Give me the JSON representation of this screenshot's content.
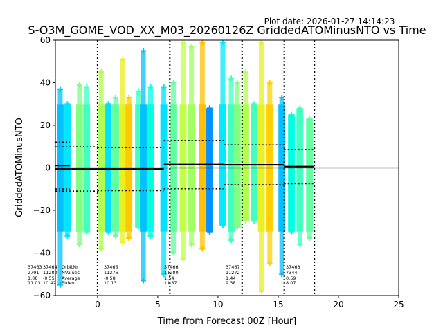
{
  "chart_data": {
    "type": "scatter",
    "plot_date": "Plot date: 2026-01-27 14:14:23",
    "title": "S-O3M_GOME_VOD_XX_M03_20260126Z GriddedATOMinusNTO vs Time",
    "xlabel": "Time from Forecast 00Z [Hour]",
    "ylabel": "GriddedATOMinusNTO",
    "xlim": [
      -3.5,
      25
    ],
    "ylim": [
      -60,
      60
    ],
    "xticks": [
      0,
      5,
      10,
      15,
      20,
      25
    ],
    "yticks": [
      -60,
      -40,
      -20,
      0,
      20,
      40,
      60
    ],
    "forecast_boundaries": [
      0,
      6,
      12,
      15.5,
      18
    ],
    "zero_line": 0,
    "orbit_stats": [
      {
        "orbit": "37463",
        "nvalues": "2791",
        "average": "1.08",
        "stdev": "11.03",
        "x_start": -3.5,
        "x_end": -2.3,
        "mean": 1.08,
        "sd": 11.03
      },
      {
        "orbit": "37464",
        "nvalues": "11280",
        "average": "-0.55",
        "stdev": "10.42",
        "x_start": -3.5,
        "x_end": 0,
        "mean": -0.55,
        "sd": 10.42
      },
      {
        "orbit": "37465",
        "nvalues": "11276",
        "average": "-0.58",
        "stdev": "10.13",
        "x_start": 0,
        "x_end": 5.5,
        "mean": -0.58,
        "sd": 10.13
      },
      {
        "orbit": "37466",
        "nvalues": "11280",
        "average": "1.54",
        "stdev": "11.37",
        "x_start": 5.5,
        "x_end": 10.5,
        "mean": 1.54,
        "sd": 11.37
      },
      {
        "orbit": "37467",
        "nvalues": "11272",
        "average": "1.44",
        "stdev": "9.38",
        "x_start": 10.5,
        "x_end": 15.5,
        "mean": 1.44,
        "sd": 9.38
      },
      {
        "orbit": "37468",
        "nvalues": "7344",
        "average": "0.59",
        "stdev": "8.07",
        "x_start": 15.5,
        "x_end": 18,
        "mean": 0.59,
        "sd": 8.07
      }
    ],
    "stat_labels": [
      "OrbitNr",
      "NValues",
      "Average",
      "Stdev"
    ],
    "strips": [
      {
        "x": -3.1,
        "ymin": -55,
        "ymax": 37,
        "color": "#00bfff"
      },
      {
        "x": -2.5,
        "ymin": -32,
        "ymax": 30,
        "color": "#00e5ff"
      },
      {
        "x": -1.5,
        "ymin": -36,
        "ymax": 39,
        "color": "#7fff7f"
      },
      {
        "x": -0.9,
        "ymin": -30,
        "ymax": 38,
        "color": "#40ffbf"
      },
      {
        "x": 0.3,
        "ymin": -38,
        "ymax": 45,
        "color": "#b0ff50"
      },
      {
        "x": 0.9,
        "ymin": -30,
        "ymax": 30,
        "color": "#00e0ff"
      },
      {
        "x": 1.5,
        "ymin": -32,
        "ymax": 33,
        "color": "#60ffa0"
      },
      {
        "x": 2.1,
        "ymin": -35,
        "ymax": 51,
        "color": "#e8f020"
      },
      {
        "x": 2.6,
        "ymin": -33,
        "ymax": 33,
        "color": "#ffc800"
      },
      {
        "x": 3.4,
        "ymin": -28,
        "ymax": 36,
        "color": "#40ffc0"
      },
      {
        "x": 3.8,
        "ymin": -53,
        "ymax": 55,
        "color": "#00c0ff"
      },
      {
        "x": 4.4,
        "ymin": -32,
        "ymax": 38,
        "color": "#00ffe0"
      },
      {
        "x": 5.5,
        "ymin": -50,
        "ymax": 38,
        "color": "#00e0ff"
      },
      {
        "x": 6.3,
        "ymin": -40,
        "ymax": 40,
        "color": "#60ffa0"
      },
      {
        "x": 7.1,
        "ymin": -43,
        "ymax": 59,
        "color": "#c0ff40"
      },
      {
        "x": 7.8,
        "ymin": -36,
        "ymax": 57,
        "color": "#a0ff60"
      },
      {
        "x": 8.7,
        "ymin": -38,
        "ymax": 59,
        "color": "#ffc000"
      },
      {
        "x": 9.3,
        "ymin": -30,
        "ymax": 28,
        "color": "#0090ff"
      },
      {
        "x": 10.4,
        "ymin": -27,
        "ymax": 59,
        "color": "#00e8ff"
      },
      {
        "x": 11.1,
        "ymin": -34,
        "ymax": 42,
        "color": "#40ffc0"
      },
      {
        "x": 11.6,
        "ymin": -28,
        "ymax": 40,
        "color": "#80ff80"
      },
      {
        "x": 12.3,
        "ymin": -25,
        "ymax": 45,
        "color": "#b0ff50"
      },
      {
        "x": 13.0,
        "ymin": -25,
        "ymax": 30,
        "color": "#40ffc0"
      },
      {
        "x": 13.6,
        "ymin": -58,
        "ymax": 59,
        "color": "#e8f020"
      },
      {
        "x": 14.3,
        "ymin": -45,
        "ymax": 40,
        "color": "#ffd000"
      },
      {
        "x": 15.3,
        "ymin": -50,
        "ymax": 33,
        "color": "#00c0ff"
      },
      {
        "x": 16.1,
        "ymin": -30,
        "ymax": 25,
        "color": "#00ffe0"
      },
      {
        "x": 16.8,
        "ymin": -36,
        "ymax": 28,
        "color": "#40ffc0"
      },
      {
        "x": 17.6,
        "ymin": -33,
        "ymax": 23,
        "color": "#60ffa0"
      }
    ]
  }
}
